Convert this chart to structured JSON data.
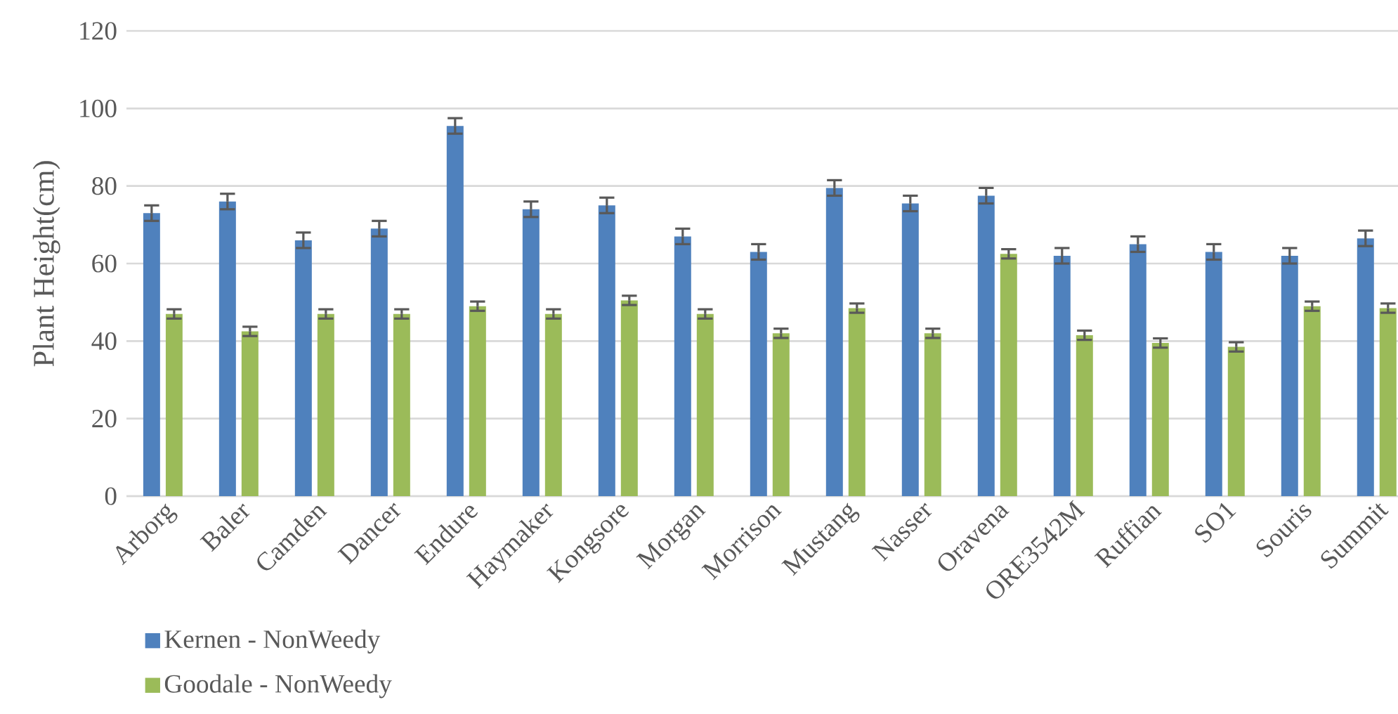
{
  "chart_data": {
    "type": "bar",
    "ylabel": "Plant Height(cm)",
    "categories": [
      "Arborg",
      "Baler",
      "Camden",
      "Dancer",
      "Endure",
      "Haymaker",
      "Kongsore",
      "Morgan",
      "Morrison",
      "Mustang",
      "Nasser",
      "Oravena",
      "ORE3542M",
      "Ruffian",
      "SO1",
      "Souris",
      "Summit"
    ],
    "series": [
      {
        "name": "Kernen - NonWeedy",
        "color": "#4f81bd",
        "values": [
          73,
          76,
          66,
          69,
          95.5,
          74,
          75,
          67,
          63,
          79.5,
          75.5,
          77.5,
          62,
          65,
          63,
          62,
          66.5
        ],
        "errors": [
          2,
          2,
          2,
          2,
          2,
          2,
          2,
          2,
          2,
          2,
          2,
          2,
          2,
          2,
          2,
          2,
          2
        ]
      },
      {
        "name": "Goodale - NonWeedy",
        "color": "#9bbb59",
        "values": [
          47,
          42.5,
          47,
          47,
          49,
          47,
          50.5,
          47,
          42,
          48.5,
          42,
          62.5,
          41.5,
          39.5,
          38.5,
          49,
          48.5
        ],
        "errors": [
          1.2,
          1.2,
          1.2,
          1.2,
          1.2,
          1.2,
          1.2,
          1.2,
          1.2,
          1.2,
          1.2,
          1.2,
          1.2,
          1.2,
          1.2,
          1.2,
          1.2
        ]
      }
    ],
    "ylim": [
      0,
      120
    ],
    "yticks": [
      0,
      20,
      40,
      60,
      80,
      100,
      120
    ],
    "grid": "y",
    "legend": "bottom left"
  }
}
